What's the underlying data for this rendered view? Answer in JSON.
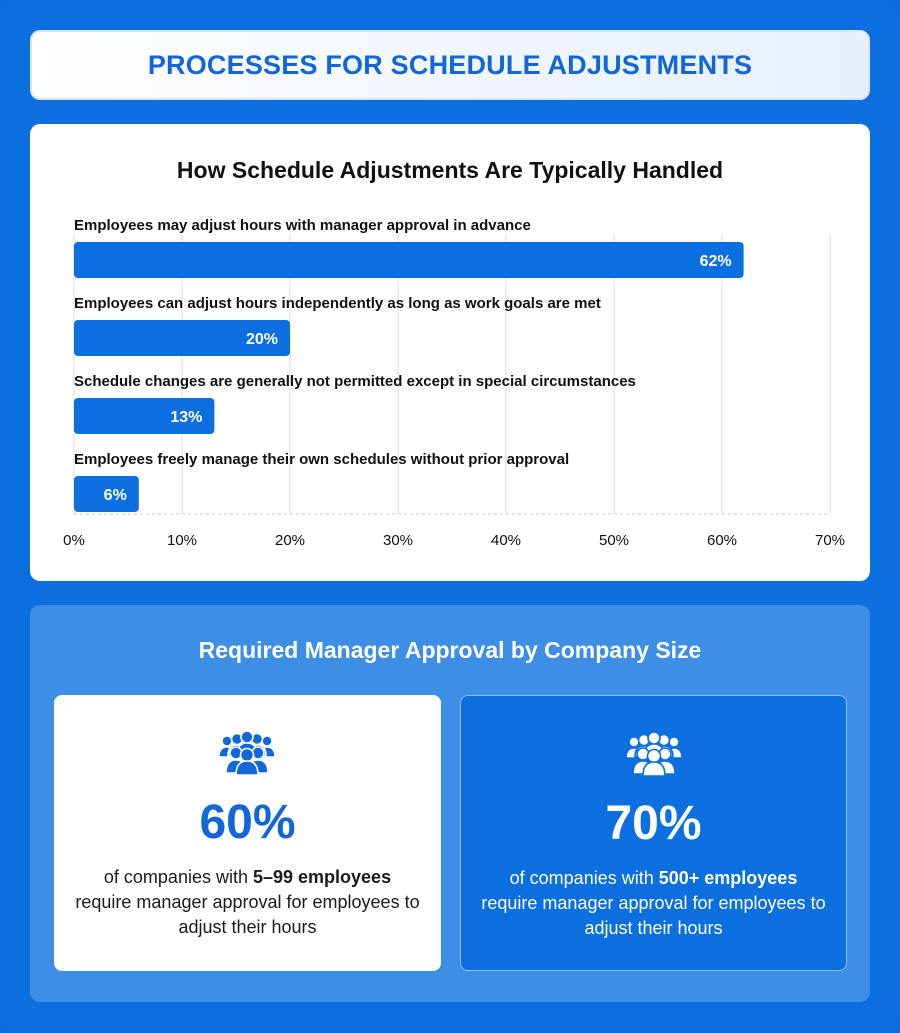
{
  "header": {
    "title": "PROCESSES FOR SCHEDULE ADJUSTMENTS"
  },
  "colors": {
    "accent": "#0b6fe0",
    "panel": "#3d8fe6",
    "bar": "#0b6fe0"
  },
  "chart_data": {
    "type": "bar",
    "orientation": "horizontal",
    "title": "How Schedule Adjustments Are Typically Handled",
    "categories": [
      "Employees may adjust hours with manager approval in advance",
      "Employees can adjust hours independently as long as work goals are met",
      "Schedule changes are generally not permitted except in special circumstances",
      "Employees freely manage their own schedules without prior approval"
    ],
    "values": [
      62,
      20,
      13,
      6
    ],
    "data_labels": [
      "62%",
      "20%",
      "13%",
      "6%"
    ],
    "xlim": [
      0,
      70
    ],
    "x_ticks": [
      0,
      10,
      20,
      30,
      40,
      50,
      60,
      70
    ],
    "x_tick_labels": [
      "0%",
      "10%",
      "20%",
      "30%",
      "40%",
      "50%",
      "60%",
      "70%"
    ],
    "grid": "vertical"
  },
  "approval": {
    "title": "Required Manager Approval by Company Size",
    "cards": [
      {
        "icon": "people-group-icon",
        "value": "60%",
        "text_before": "of companies with ",
        "highlight": "5–99 employees",
        "text_after": " require manager approval for employees to adjust their hours"
      },
      {
        "icon": "people-group-icon",
        "value": "70%",
        "text_before": "of companies with ",
        "highlight": "500+ employees",
        "text_after": " require manager approval for employees to adjust their hours"
      }
    ]
  }
}
